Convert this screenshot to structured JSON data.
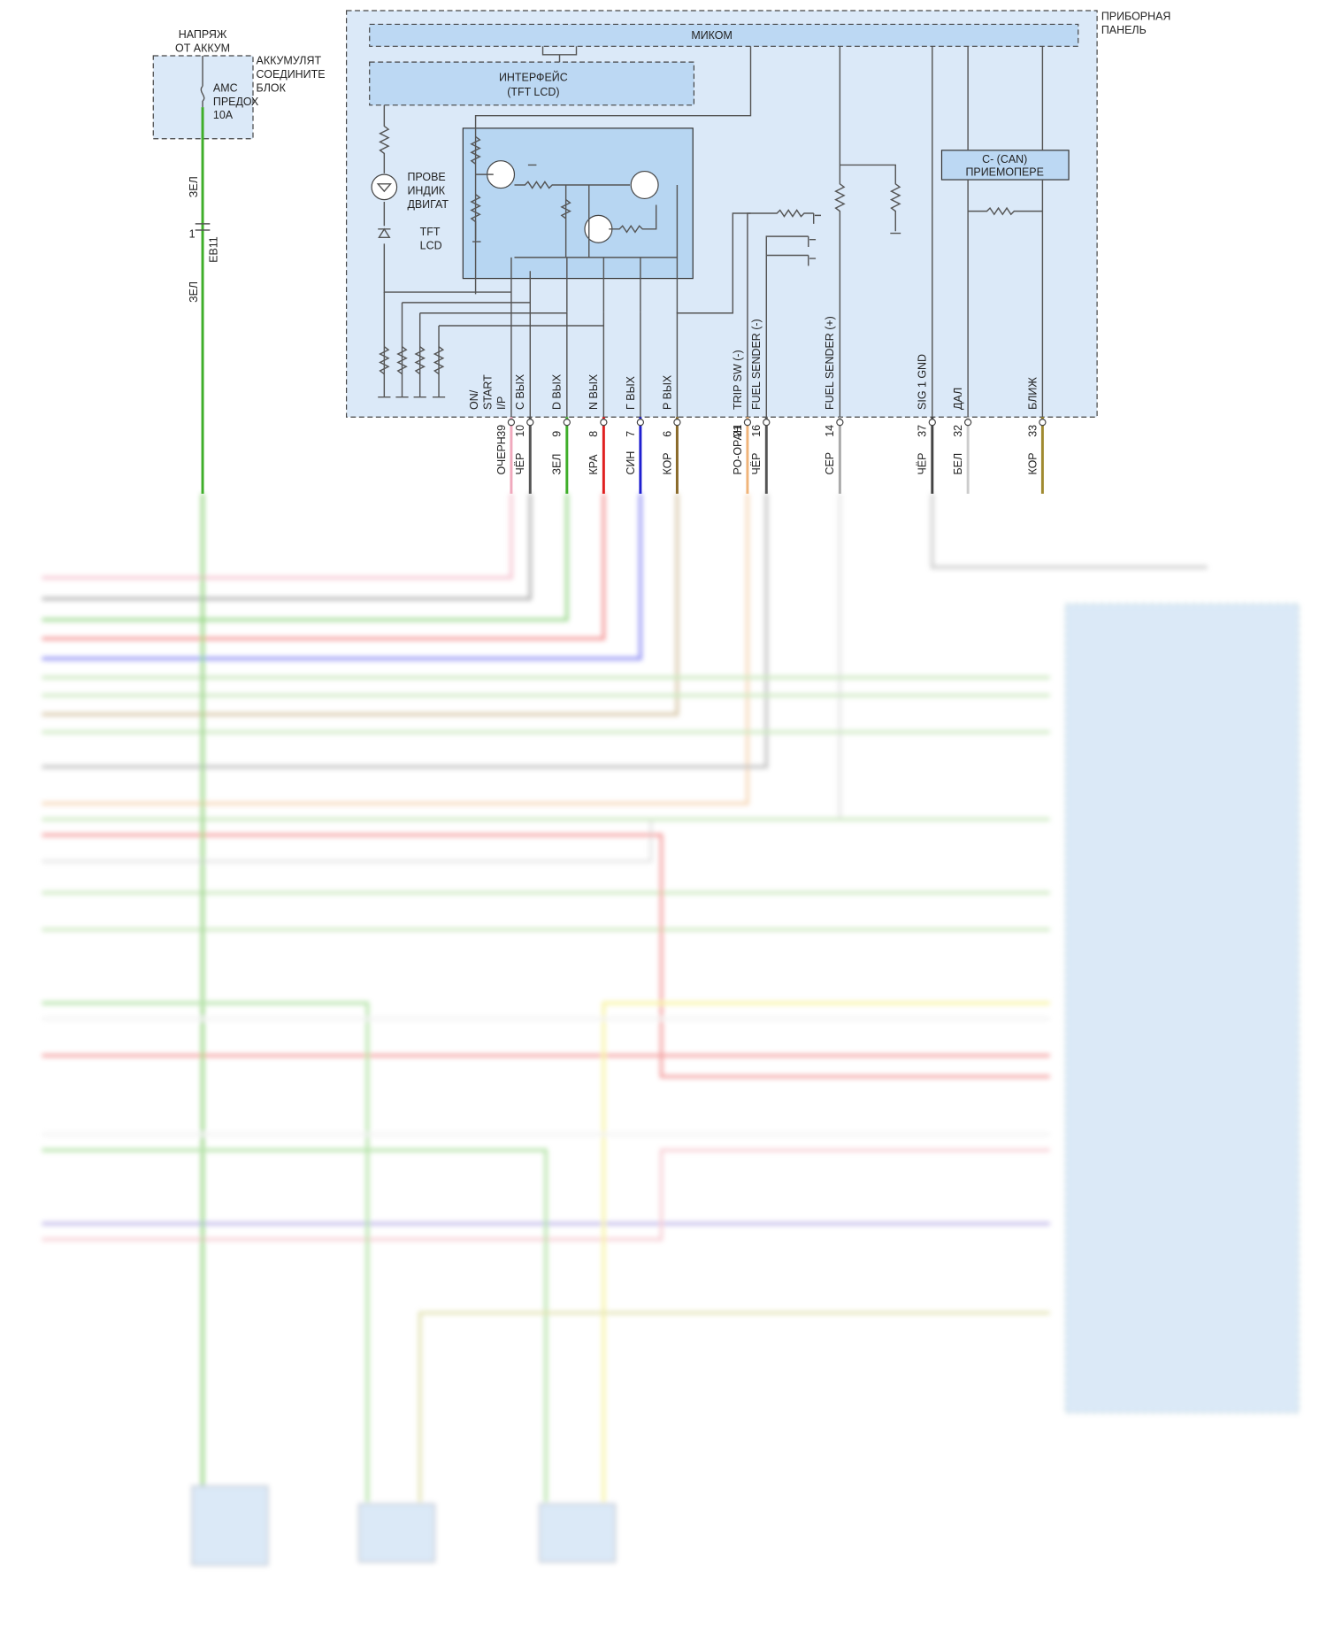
{
  "power": {
    "label": [
      "НАПРЯЖ",
      "ОТ АККУМ"
    ]
  },
  "fuse_block": {
    "label": [
      "АККУМУЛЯТ",
      "СОЕДИНИТЕ",
      "БЛОК"
    ],
    "fuse": [
      "AMC",
      "ПРЕДОХ",
      "10A"
    ]
  },
  "left_wire": {
    "colors": [
      "ЗЕЛ",
      "ЗЕЛ"
    ],
    "connector": "EB11",
    "pin": "1"
  },
  "panel": {
    "label": [
      "ПРИБОРНАЯ",
      "ПАНЕЛЬ"
    ],
    "micom": "МИКОМ",
    "interface": [
      "ИНТЕРФЕЙС",
      "(TFT LCD)"
    ],
    "engine_lamp": [
      "ПРОВЕ",
      "ИНДИК",
      "ДВИГАТ"
    ],
    "tft": [
      "TFT",
      "LCD"
    ],
    "can": [
      "C- (CAN)",
      "ПРИЕМОПЕРЕ"
    ]
  },
  "pins": [
    {
      "signal": [
        "ON/",
        "START",
        "I/P"
      ],
      "pin": "39",
      "wire": "ОЧЕРН"
    },
    {
      "signal": [
        "C ВЫХ"
      ],
      "pin": "10",
      "wire": "ЧЁР"
    },
    {
      "signal": [
        "D ВЫХ"
      ],
      "pin": "9",
      "wire": "ЗЕЛ"
    },
    {
      "signal": [
        "N ВЫХ"
      ],
      "pin": "8",
      "wire": "КРА"
    },
    {
      "signal": [
        "Г ВЫХ"
      ],
      "pin": "7",
      "wire": "СИН"
    },
    {
      "signal": [
        "P ВЫХ"
      ],
      "pin": "6",
      "wire": "КОР"
    },
    {
      "signal": [
        "TRIP SW (-)"
      ],
      "pin": "21",
      "wire": "РО-ОРАН"
    },
    {
      "signal": [
        "FUEL SENDER (-)"
      ],
      "pin": "16",
      "wire": "ЧЁР"
    },
    {
      "signal": [
        "FUEL SENDER (+)"
      ],
      "pin": "14",
      "wire": "СЕР"
    },
    {
      "signal": [
        "SIG 1 GND"
      ],
      "pin": "37",
      "wire": "ЧЁР"
    },
    {
      "signal": [
        "ДАЛ"
      ],
      "pin": "32",
      "wire": "БЕЛ"
    },
    {
      "signal": [
        "БЛИЖ"
      ],
      "pin": "33",
      "wire": "КОР"
    }
  ]
}
